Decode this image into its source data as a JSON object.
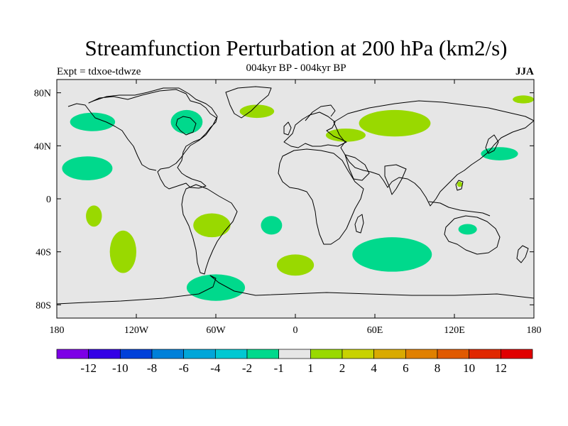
{
  "title": "Streamfunction Perturbation at 200 hPa (km2/s)",
  "subtitle": "004kyr BP - 004kyr BP",
  "left_label": "Expt = tdxoe-tdwze",
  "right_label": "JJA",
  "map": {
    "lon_range": [
      -180,
      180
    ],
    "lat_range": [
      -90,
      90
    ],
    "background_color": "#e6e6e6",
    "coastline_color": "#000000",
    "x_ticks": [
      {
        "lon": -180,
        "label": "180"
      },
      {
        "lon": -120,
        "label": "120W"
      },
      {
        "lon": -60,
        "label": "60W"
      },
      {
        "lon": 0,
        "label": "0"
      },
      {
        "lon": 60,
        "label": "60E"
      },
      {
        "lon": 120,
        "label": "120E"
      },
      {
        "lon": 180,
        "label": "180"
      }
    ],
    "y_ticks": [
      {
        "lat": 80,
        "label": "80N"
      },
      {
        "lat": 40,
        "label": "40N"
      },
      {
        "lat": 0,
        "label": "0"
      },
      {
        "lat": -40,
        "label": "40S"
      },
      {
        "lat": -80,
        "label": "80S"
      }
    ],
    "anomalies": [
      {
        "name": "north-pacific-negative",
        "lon": -153,
        "lat": 58,
        "rlon": 17,
        "rlat": 7,
        "color": "#00d98c"
      },
      {
        "name": "greenland-positive",
        "lon": -29,
        "lat": 66,
        "rlon": 13,
        "rlat": 5,
        "color": "#99d900"
      },
      {
        "name": "hudson-bay-negative",
        "lon": -82,
        "lat": 58,
        "rlon": 12,
        "rlat": 9,
        "color": "#00d98c"
      },
      {
        "name": "eurasia-positive",
        "lon": 75,
        "lat": 57,
        "rlon": 27,
        "rlat": 10,
        "color": "#99d900"
      },
      {
        "name": "west-asia-positive",
        "lon": 38,
        "lat": 48,
        "rlon": 15,
        "rlat": 5,
        "color": "#99d900"
      },
      {
        "name": "north-pacific-east-negative",
        "lon": -157,
        "lat": 23,
        "rlon": 19,
        "rlat": 9,
        "color": "#00d98c"
      },
      {
        "name": "west-pacific-negative",
        "lon": 154,
        "lat": 34,
        "rlon": 14,
        "rlat": 5,
        "color": "#00d98c"
      },
      {
        "name": "dateline-arctic-positive",
        "lon": 172,
        "lat": 75,
        "rlon": 8,
        "rlat": 3,
        "color": "#99d900"
      },
      {
        "name": "south-pacific-positive",
        "lon": -152,
        "lat": -13,
        "rlon": 6,
        "rlat": 8,
        "color": "#99d900"
      },
      {
        "name": "south-pacific-mid-positive",
        "lon": -130,
        "lat": -40,
        "rlon": 10,
        "rlat": 16,
        "color": "#99d900"
      },
      {
        "name": "south-america-positive",
        "lon": -63,
        "lat": -20,
        "rlon": 14,
        "rlat": 9,
        "color": "#99d900"
      },
      {
        "name": "south-atlantic-negative",
        "lon": -18,
        "lat": -20,
        "rlon": 8,
        "rlat": 7,
        "color": "#00d98c"
      },
      {
        "name": "south-atlantic-positive",
        "lon": 0,
        "lat": -50,
        "rlon": 14,
        "rlat": 8,
        "color": "#99d900"
      },
      {
        "name": "indian-ocean-negative",
        "lon": 73,
        "lat": -42,
        "rlon": 30,
        "rlat": 13,
        "color": "#00d98c"
      },
      {
        "name": "australia-negative",
        "lon": 130,
        "lat": -23,
        "rlon": 7,
        "rlat": 4,
        "color": "#00d98c"
      },
      {
        "name": "southern-ocean-negative",
        "lon": -60,
        "lat": -67,
        "rlon": 22,
        "rlat": 10,
        "color": "#00d98c"
      },
      {
        "name": "philippines-positive",
        "lon": 124,
        "lat": 11,
        "rlon": 2,
        "rlat": 2,
        "color": "#99d900"
      }
    ]
  },
  "colorbar": {
    "colors": [
      "#7d00e6",
      "#3300e6",
      "#0040d9",
      "#0080d9",
      "#00a6d9",
      "#00c8d2",
      "#00d98c",
      "#e6e6e6",
      "#99d900",
      "#c8d200",
      "#d9aa00",
      "#e08000",
      "#e05a00",
      "#e02800",
      "#e00000"
    ],
    "labels": [
      "-12",
      "-10",
      "-8",
      "-6",
      "-4",
      "-2",
      "-1",
      "1",
      "2",
      "4",
      "6",
      "8",
      "10",
      "12"
    ]
  }
}
